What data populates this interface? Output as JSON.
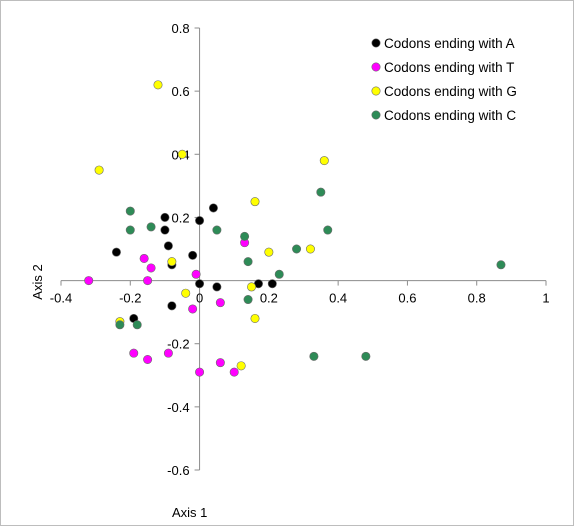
{
  "chart_data": {
    "type": "scatter",
    "xlabel": "Axis 1",
    "ylabel": "Axis 2",
    "xlim": [
      -0.4,
      1.0
    ],
    "ylim": [
      -0.6,
      0.8
    ],
    "x_ticks": [
      "-0.4",
      "-0.2",
      "0",
      "0.2",
      "0.4",
      "0.6",
      "0.8",
      "1"
    ],
    "y_ticks": [
      "-0.6",
      "-0.4",
      "-0.2",
      "0",
      "0.2",
      "0.4",
      "0.6",
      "0.8"
    ],
    "grid": false,
    "legend_position": "top-right",
    "series": [
      {
        "name": "Codons ending with A",
        "color": "#000000",
        "points": [
          [
            -0.24,
            0.09
          ],
          [
            -0.1,
            0.2
          ],
          [
            -0.1,
            0.16
          ],
          [
            -0.09,
            0.11
          ],
          [
            -0.08,
            0.05
          ],
          [
            -0.02,
            0.08
          ],
          [
            0.0,
            0.19
          ],
          [
            0.04,
            0.23
          ],
          [
            0.0,
            -0.01
          ],
          [
            0.05,
            -0.02
          ],
          [
            0.17,
            -0.01
          ],
          [
            0.21,
            -0.01
          ],
          [
            -0.08,
            -0.08
          ],
          [
            -0.19,
            -0.12
          ]
        ]
      },
      {
        "name": "Codons ending with T",
        "color": "#ff00ff",
        "points": [
          [
            -0.32,
            0.0
          ],
          [
            -0.16,
            0.07
          ],
          [
            -0.14,
            0.04
          ],
          [
            -0.15,
            0.0
          ],
          [
            -0.01,
            0.02
          ],
          [
            0.13,
            0.12
          ],
          [
            -0.02,
            -0.09
          ],
          [
            0.06,
            -0.07
          ],
          [
            -0.19,
            -0.23
          ],
          [
            -0.15,
            -0.25
          ],
          [
            -0.09,
            -0.23
          ],
          [
            0.0,
            -0.29
          ],
          [
            0.06,
            -0.26
          ],
          [
            0.1,
            -0.29
          ]
        ]
      },
      {
        "name": "Codons ending with G",
        "color": "#ffff00",
        "points": [
          [
            -0.29,
            0.35
          ],
          [
            -0.12,
            0.62
          ],
          [
            -0.05,
            0.4
          ],
          [
            0.16,
            0.25
          ],
          [
            0.36,
            0.38
          ],
          [
            -0.08,
            0.06
          ],
          [
            0.2,
            0.09
          ],
          [
            0.32,
            0.1
          ],
          [
            -0.04,
            -0.04
          ],
          [
            0.15,
            -0.02
          ],
          [
            0.16,
            -0.12
          ],
          [
            -0.23,
            -0.13
          ],
          [
            0.12,
            -0.27
          ]
        ]
      },
      {
        "name": "Codons ending with C",
        "color": "#2e8b57",
        "points": [
          [
            -0.2,
            0.22
          ],
          [
            -0.2,
            0.16
          ],
          [
            -0.14,
            0.17
          ],
          [
            0.05,
            0.16
          ],
          [
            0.13,
            0.14
          ],
          [
            0.14,
            0.06
          ],
          [
            0.23,
            0.02
          ],
          [
            0.28,
            0.1
          ],
          [
            0.35,
            0.28
          ],
          [
            0.37,
            0.16
          ],
          [
            0.87,
            0.05
          ],
          [
            0.14,
            -0.06
          ],
          [
            -0.18,
            -0.14
          ],
          [
            -0.23,
            -0.14
          ],
          [
            0.33,
            -0.24
          ],
          [
            0.48,
            -0.24
          ]
        ]
      }
    ]
  }
}
